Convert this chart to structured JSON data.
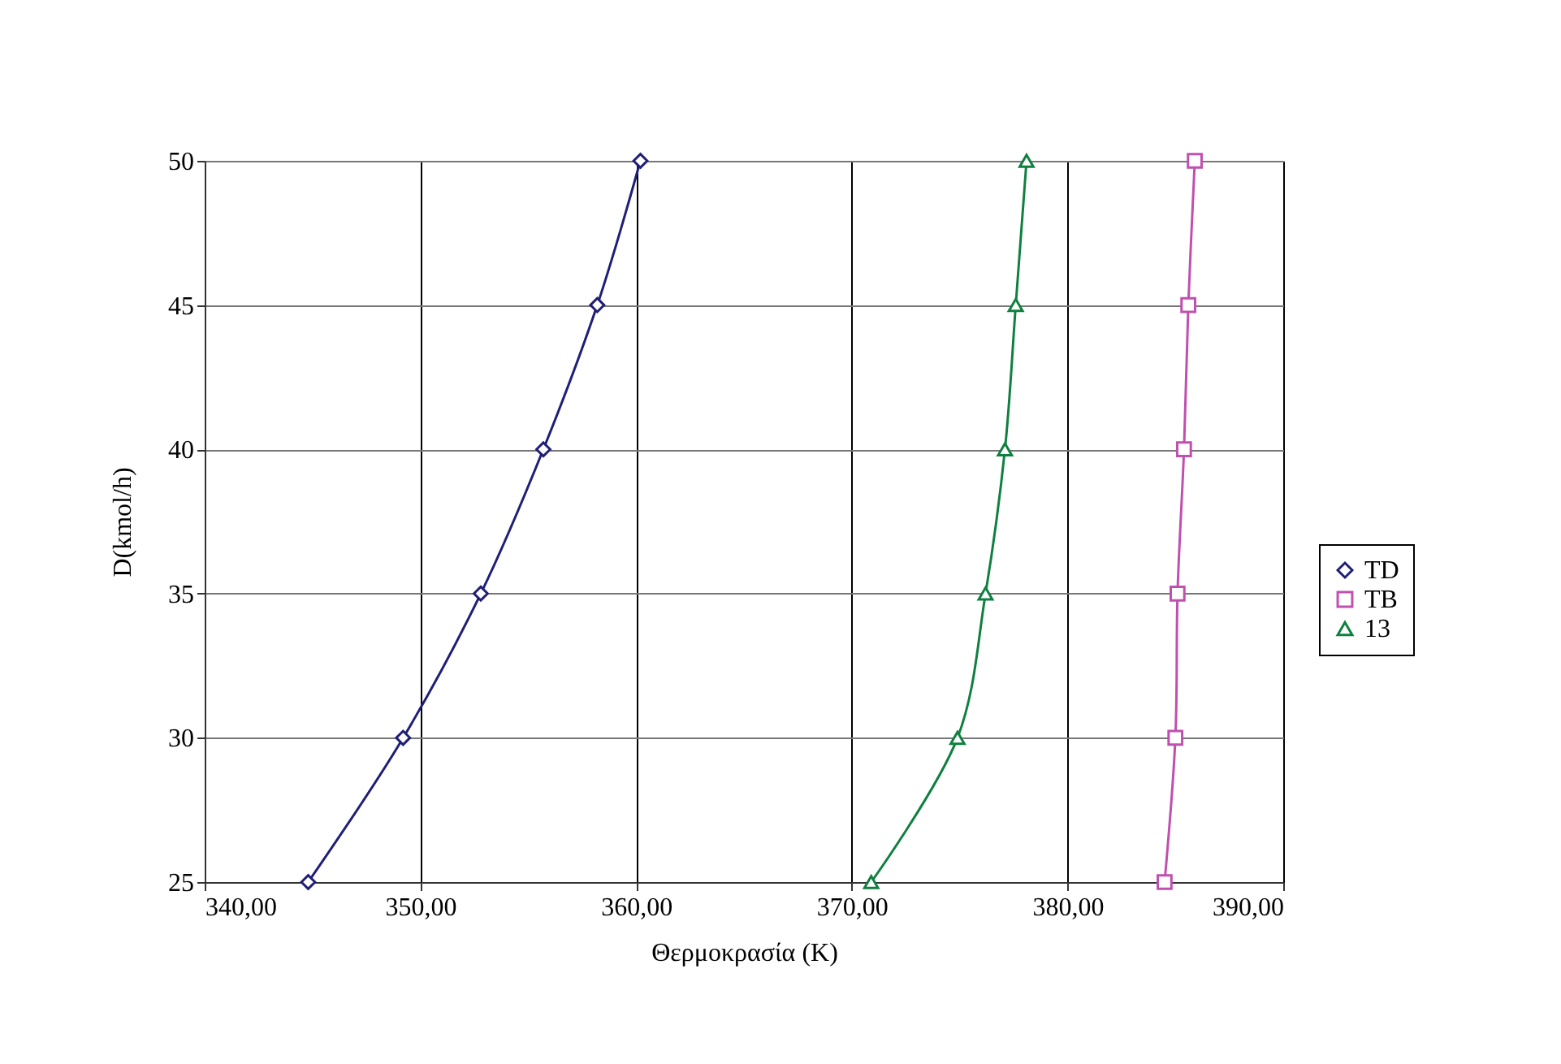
{
  "chart_data": {
    "type": "line",
    "orientation": "horizontal",
    "xlabel": "Θερμοκρασία (K)",
    "ylabel": "D(kmol/h)",
    "x": [
      25,
      30,
      35,
      40,
      45,
      50
    ],
    "series": [
      {
        "name": "TD",
        "color": "#1f1f78",
        "marker": "diamond",
        "values": [
          344.8,
          349.2,
          352.8,
          355.7,
          358.2,
          360.2
        ]
      },
      {
        "name": "TB",
        "color": "#c050b0",
        "marker": "square",
        "values": [
          384.5,
          385.0,
          385.1,
          385.4,
          385.6,
          385.9
        ]
      },
      {
        "name": "13",
        "color": "#108040",
        "marker": "triangle",
        "values": [
          370.9,
          374.9,
          376.2,
          377.1,
          377.6,
          378.1
        ]
      }
    ],
    "xlim": [
      340,
      390
    ],
    "xticks": [
      {
        "value": 340,
        "label": "340,00"
      },
      {
        "value": 350,
        "label": "350,00"
      },
      {
        "value": 360,
        "label": "360,00"
      },
      {
        "value": 370,
        "label": "370,00"
      },
      {
        "value": 380,
        "label": "380,00"
      },
      {
        "value": 390,
        "label": "390,00"
      }
    ],
    "ylim": [
      25,
      50
    ],
    "yticks": [
      25,
      30,
      35,
      40,
      45,
      50
    ],
    "grid": true,
    "legend": "right",
    "line_style": "solid"
  }
}
